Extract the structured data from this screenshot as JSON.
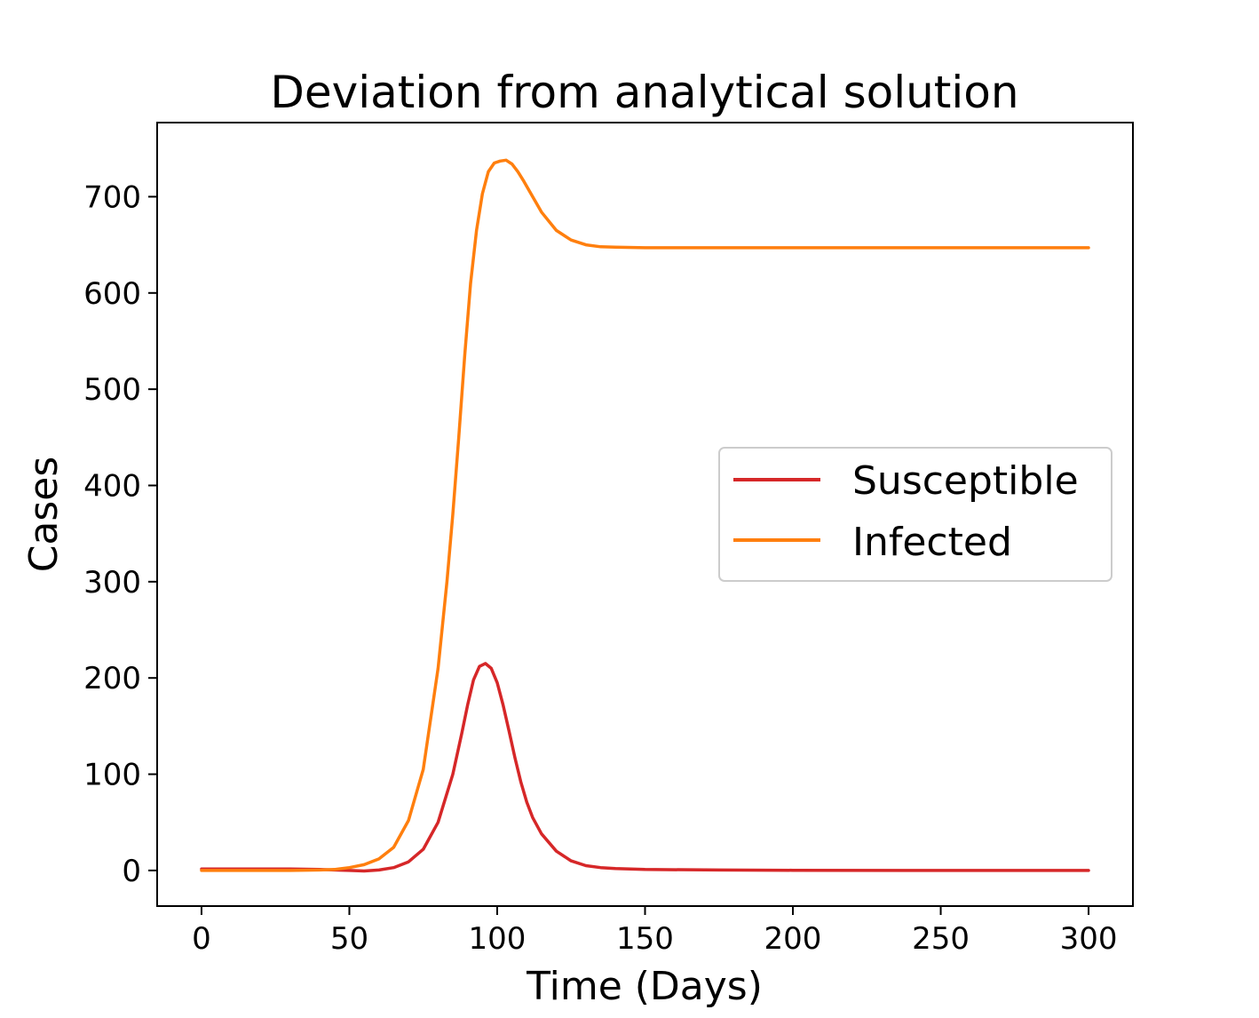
{
  "chart_data": {
    "type": "line",
    "title": "Deviation from analytical solution",
    "xlabel": "Time (Days)",
    "ylabel": "Cases",
    "xlim": [
      -15,
      315
    ],
    "ylim": [
      -37,
      777
    ],
    "xticks": [
      0,
      50,
      100,
      150,
      200,
      250,
      300
    ],
    "yticks": [
      0,
      100,
      200,
      300,
      400,
      500,
      600,
      700
    ],
    "grid": false,
    "legend_position": "center-right",
    "series": [
      {
        "name": "Susceptible",
        "color": "#d62728",
        "x": [
          0,
          10,
          20,
          30,
          40,
          45,
          50,
          55,
          60,
          65,
          70,
          75,
          80,
          85,
          88,
          90,
          92,
          94,
          96,
          98,
          100,
          102,
          104,
          106,
          108,
          110,
          112,
          115,
          120,
          125,
          130,
          135,
          140,
          150,
          175,
          200,
          250,
          300
        ],
        "y": [
          1.5,
          1.5,
          1.5,
          1.5,
          1,
          0.5,
          0,
          -0.5,
          0.5,
          3,
          9,
          22,
          50,
          100,
          142,
          172,
          198,
          212,
          215,
          210,
          195,
          172,
          145,
          117,
          92,
          71,
          55,
          38,
          20,
          10,
          5,
          3,
          2,
          1,
          0.5,
          0.2,
          0,
          0
        ]
      },
      {
        "name": "Infected",
        "color": "#ff7f0e",
        "x": [
          0,
          10,
          20,
          30,
          40,
          45,
          50,
          55,
          60,
          65,
          70,
          75,
          80,
          83,
          85,
          87,
          89,
          91,
          93,
          95,
          97,
          99,
          101,
          103,
          105,
          107,
          109,
          112,
          115,
          120,
          125,
          130,
          135,
          140,
          150,
          175,
          200,
          250,
          300
        ],
        "y": [
          0,
          0,
          0,
          0,
          0.5,
          1,
          3,
          6,
          12,
          24,
          52,
          105,
          210,
          300,
          370,
          450,
          535,
          610,
          665,
          703,
          726,
          735,
          737,
          738,
          734,
          726,
          716,
          700,
          684,
          665,
          655,
          650,
          648,
          647.5,
          647,
          647,
          647,
          647,
          647
        ]
      }
    ]
  }
}
